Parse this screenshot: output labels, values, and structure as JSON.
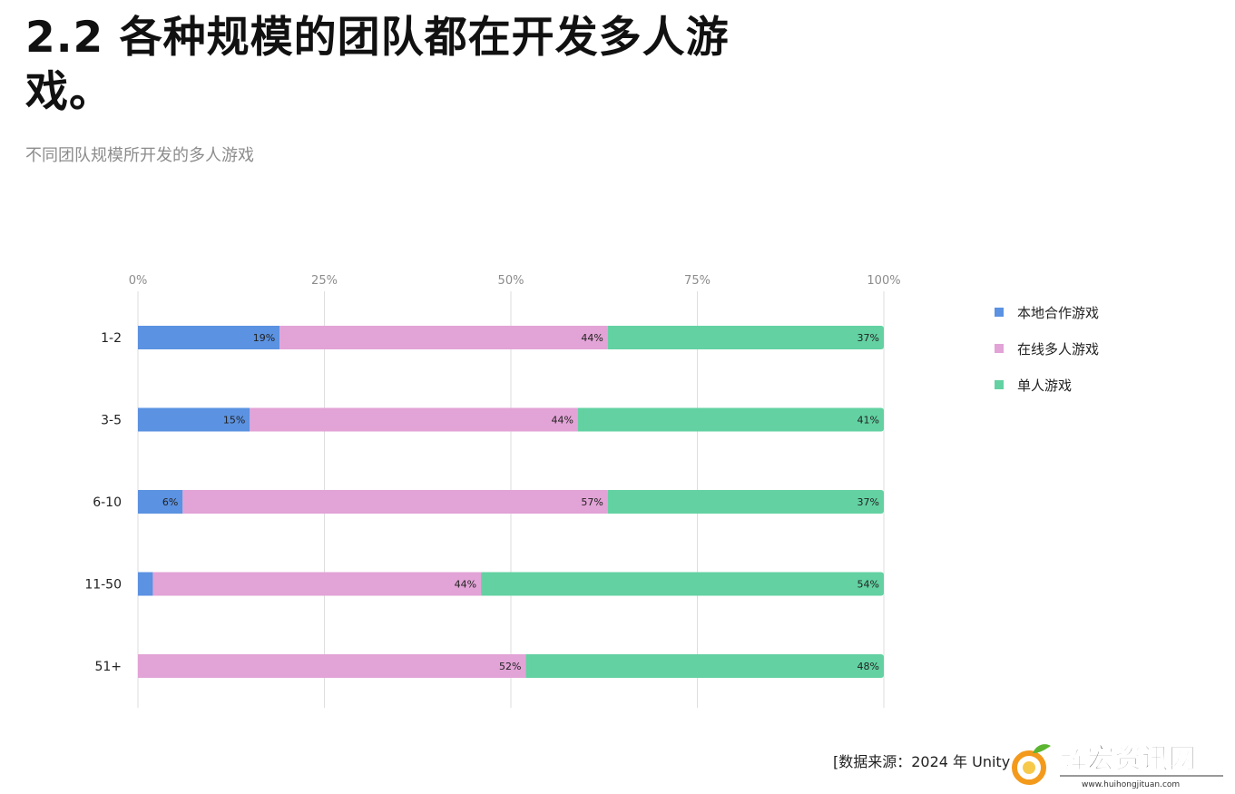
{
  "title": "2.2 各种规模的团队都在开发多人游戏。",
  "subtitle": "不同团队规模所开发的多人游戏",
  "source": "[数据来源：2024 年 Unity",
  "watermark": {
    "brand": "辉宏资讯网",
    "url": "www.huihongjituan.com"
  },
  "colors": {
    "local_coop": "#5b92e1",
    "online": "#e2a3d6",
    "single": "#63d1a2",
    "grid": "#dedede",
    "axis_text": "#8c8c8c"
  },
  "chart_data": {
    "type": "bar",
    "orientation": "horizontal",
    "stacked": true,
    "title": "不同团队规模所开发的多人游戏",
    "xlim": [
      0,
      100
    ],
    "x_ticks": [
      "0%",
      "25%",
      "50%",
      "75%",
      "100%"
    ],
    "x_tick_values": [
      0,
      25,
      50,
      75,
      100
    ],
    "categories": [
      "1-2",
      "3-5",
      "6-10",
      "11-50",
      "51+"
    ],
    "series": [
      {
        "name": "本地合作游戏",
        "color": "#5b92e1",
        "values": [
          19,
          15,
          6,
          2,
          0
        ],
        "labels": [
          "19%",
          "15%",
          "6%",
          "2%",
          "0%"
        ]
      },
      {
        "name": "在线多人游戏",
        "color": "#e2a3d6",
        "values": [
          44,
          44,
          57,
          44,
          52
        ],
        "labels": [
          "44%",
          "44%",
          "57%",
          "44%",
          "52%"
        ]
      },
      {
        "name": "单人游戏",
        "color": "#63d1a2",
        "values": [
          37,
          41,
          37,
          54,
          48
        ],
        "labels": [
          "37%",
          "41%",
          "37%",
          "54%",
          "48%"
        ]
      }
    ],
    "grid": true,
    "legend_position": "right"
  }
}
